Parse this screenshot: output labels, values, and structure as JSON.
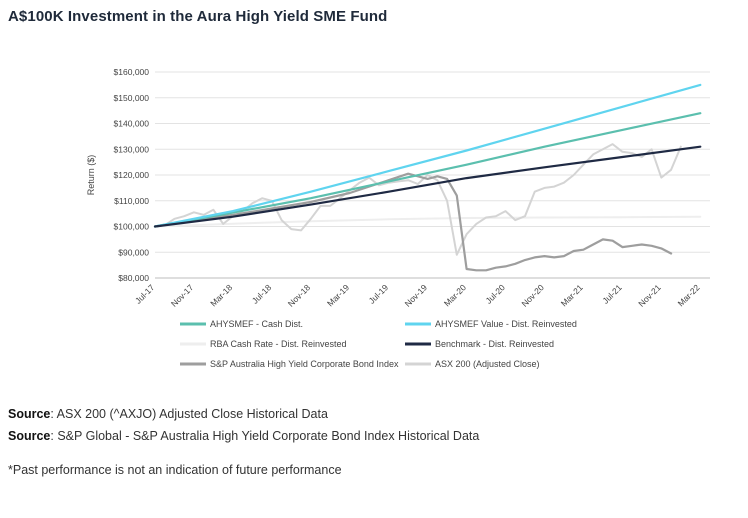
{
  "page": {
    "title": "A$100K Investment in the Aura High Yield SME Fund",
    "sources": [
      {
        "label": "Source",
        "text": ": ASX 200 (^AXJO) Adjusted Close Historical Data"
      },
      {
        "label": "Source",
        "text": ": S&P Global - S&P Australia High Yield Corporate Bond Index Historical Data"
      }
    ],
    "note": "*Past performance is not an indication of future performance"
  },
  "chart_data": {
    "type": "line",
    "ylabel": "Return ($)",
    "ylim": [
      80000,
      160000
    ],
    "yticks": [
      80000,
      90000,
      100000,
      110000,
      120000,
      130000,
      140000,
      150000,
      160000
    ],
    "ytick_labels": [
      "$80,000",
      "$90,000",
      "$100,000",
      "$110,000",
      "$120,000",
      "$130,000",
      "$140,000",
      "$150,000",
      "$160,000"
    ],
    "xlim": [
      0,
      57
    ],
    "xticks": [
      0,
      4,
      8,
      12,
      16,
      20,
      24,
      28,
      32,
      36,
      40,
      44,
      48,
      52,
      56
    ],
    "xtick_labels": [
      "Jul-17",
      "Nov-17",
      "Mar-18",
      "Jul-18",
      "Nov-18",
      "Mar-19",
      "Jul-19",
      "Nov-19",
      "Mar-20",
      "Jul-20",
      "Nov-20",
      "Mar-21",
      "Jul-21",
      "Nov-21",
      "Mar-22"
    ],
    "grid": "horizontal",
    "legend_placement": "bottom",
    "series": [
      {
        "name": "AHYSMEF - Cash Dist.",
        "color": "#5bbfae",
        "width": 2.2,
        "points": [
          [
            0,
            100000
          ],
          [
            8,
            105400
          ],
          [
            16,
            111000
          ],
          [
            24,
            117500
          ],
          [
            32,
            124000
          ],
          [
            40,
            131000
          ],
          [
            48,
            137500
          ],
          [
            56,
            144000
          ]
        ]
      },
      {
        "name": "AHYSMEF Value - Dist. Reinvested",
        "color": "#5fd4ef",
        "width": 2.2,
        "points": [
          [
            0,
            100000
          ],
          [
            8,
            106000
          ],
          [
            16,
            113500
          ],
          [
            24,
            121500
          ],
          [
            32,
            129500
          ],
          [
            40,
            138000
          ],
          [
            48,
            146500
          ],
          [
            56,
            155000
          ]
        ]
      },
      {
        "name": "RBA Cash Rate - Dist. Reinvested",
        "color": "#eeeeee",
        "width": 2,
        "points": [
          [
            0,
            100000
          ],
          [
            8,
            101100
          ],
          [
            16,
            102000
          ],
          [
            24,
            102800
          ],
          [
            32,
            103300
          ],
          [
            40,
            103500
          ],
          [
            48,
            103600
          ],
          [
            56,
            103800
          ]
        ]
      },
      {
        "name": "Benchmark - Dist. Reinvested",
        "color": "#1f2a44",
        "width": 2.2,
        "points": [
          [
            0,
            100000
          ],
          [
            8,
            103800
          ],
          [
            16,
            108500
          ],
          [
            24,
            113500
          ],
          [
            32,
            118800
          ],
          [
            40,
            123000
          ],
          [
            48,
            127000
          ],
          [
            56,
            131000
          ]
        ]
      },
      {
        "name": "S&P Australia High Yield Corporate Bond Index",
        "color": "#9e9e9e",
        "width": 2.2,
        "points": [
          [
            0,
            100000
          ],
          [
            4,
            102500
          ],
          [
            8,
            104500
          ],
          [
            12,
            107000
          ],
          [
            16,
            109500
          ],
          [
            20,
            113000
          ],
          [
            24,
            118000
          ],
          [
            26,
            120500
          ],
          [
            28,
            118500
          ],
          [
            29,
            119500
          ],
          [
            30,
            118500
          ],
          [
            31,
            112000
          ],
          [
            32,
            83500
          ],
          [
            33,
            83000
          ],
          [
            34,
            83000
          ],
          [
            35,
            84000
          ],
          [
            36,
            84500
          ],
          [
            37,
            85500
          ],
          [
            38,
            87000
          ],
          [
            39,
            88000
          ],
          [
            40,
            88500
          ],
          [
            41,
            88000
          ],
          [
            42,
            88500
          ],
          [
            43,
            90500
          ],
          [
            44,
            91000
          ],
          [
            45,
            93000
          ],
          [
            46,
            95000
          ],
          [
            47,
            94500
          ],
          [
            48,
            92000
          ],
          [
            49,
            92500
          ],
          [
            50,
            93000
          ],
          [
            51,
            92500
          ],
          [
            52,
            91500
          ],
          [
            53,
            89500
          ]
        ]
      },
      {
        "name": "ASX 200 (Adjusted Close)",
        "color": "#d4d4d4",
        "width": 2,
        "points": [
          [
            0,
            100000
          ],
          [
            1,
            100500
          ],
          [
            2,
            103000
          ],
          [
            3,
            104000
          ],
          [
            4,
            105500
          ],
          [
            5,
            104500
          ],
          [
            6,
            106500
          ],
          [
            7,
            101000
          ],
          [
            8,
            104000
          ],
          [
            9,
            106000
          ],
          [
            10,
            109000
          ],
          [
            11,
            111000
          ],
          [
            12,
            110000
          ],
          [
            13,
            102500
          ],
          [
            14,
            99000
          ],
          [
            15,
            98500
          ],
          [
            16,
            103000
          ],
          [
            17,
            108000
          ],
          [
            18,
            108000
          ],
          [
            19,
            111000
          ],
          [
            20,
            114000
          ],
          [
            21,
            117000
          ],
          [
            22,
            119000
          ],
          [
            23,
            116000
          ],
          [
            24,
            117000
          ],
          [
            25,
            117500
          ],
          [
            26,
            118000
          ],
          [
            27,
            116500
          ],
          [
            28,
            120000
          ],
          [
            29,
            118000
          ],
          [
            30,
            110000
          ],
          [
            31,
            89000
          ],
          [
            32,
            97000
          ],
          [
            33,
            101000
          ],
          [
            34,
            103500
          ],
          [
            35,
            104000
          ],
          [
            36,
            106000
          ],
          [
            37,
            102500
          ],
          [
            38,
            104000
          ],
          [
            39,
            113500
          ],
          [
            40,
            115000
          ],
          [
            41,
            115500
          ],
          [
            42,
            117000
          ],
          [
            43,
            120000
          ],
          [
            44,
            124000
          ],
          [
            45,
            128000
          ],
          [
            46,
            130000
          ],
          [
            47,
            132000
          ],
          [
            48,
            129000
          ],
          [
            49,
            128500
          ],
          [
            50,
            127000
          ],
          [
            51,
            130000
          ],
          [
            52,
            119000
          ],
          [
            53,
            122000
          ],
          [
            54,
            131000
          ]
        ]
      }
    ]
  }
}
